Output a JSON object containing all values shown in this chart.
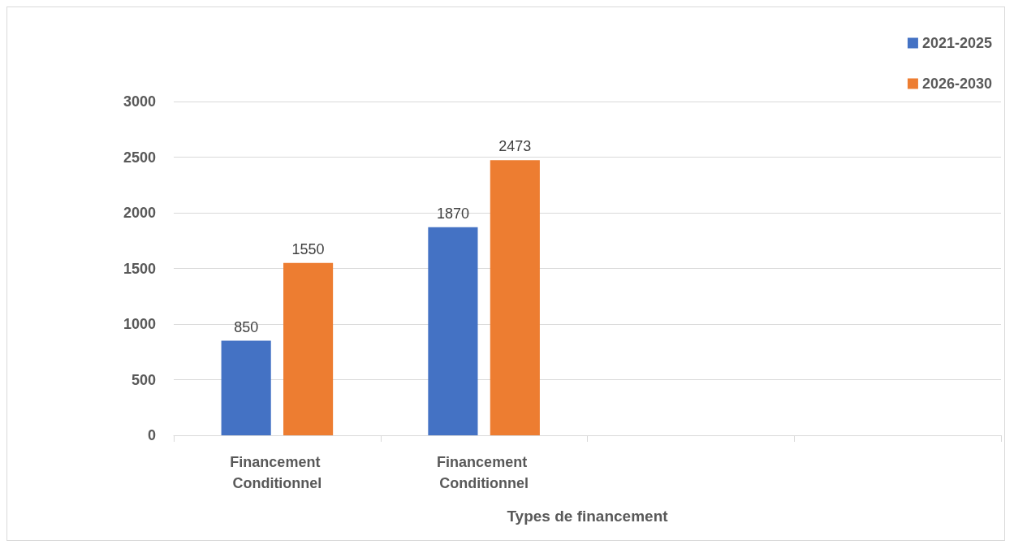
{
  "chart_data": {
    "type": "bar",
    "xlabel": "Types de financement",
    "categories": [
      "Financement Conditionnel",
      "Financement Conditionnel",
      null,
      null
    ],
    "series": [
      {
        "name": "2021-2025",
        "color": "#4472c4",
        "values": [
          850,
          1870,
          null,
          null
        ]
      },
      {
        "name": "2026-2030",
        "color": "#ed7d31",
        "values": [
          1550,
          2473,
          null,
          null
        ]
      }
    ],
    "ylim": [
      0,
      3000
    ],
    "yticks": [
      0,
      500,
      1000,
      1500,
      2000,
      2500,
      3000
    ],
    "grid": "y",
    "legend": "top right",
    "data_labels": true
  }
}
